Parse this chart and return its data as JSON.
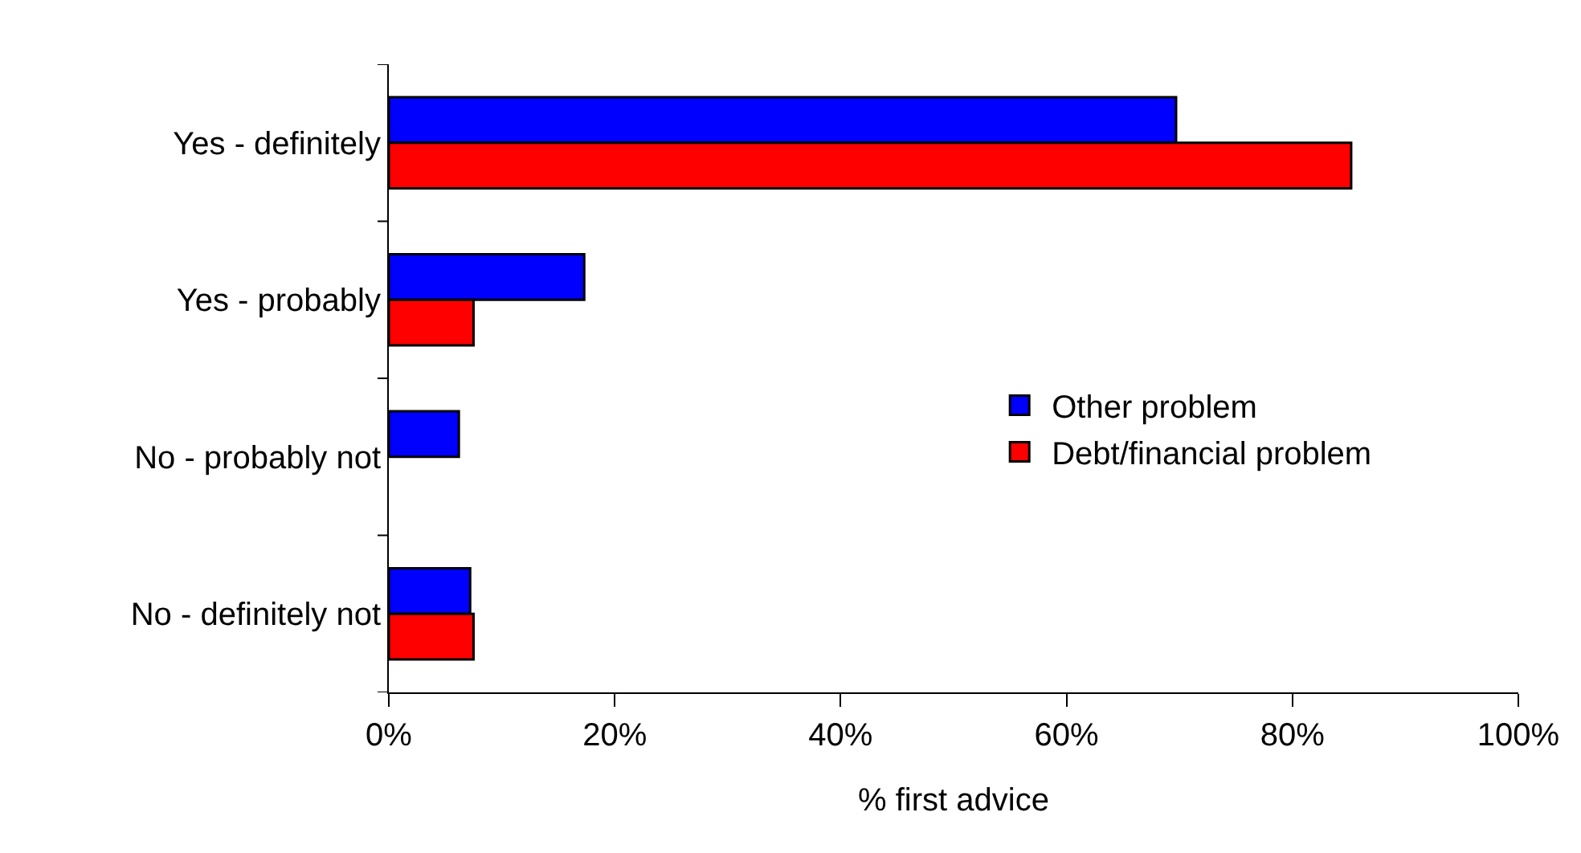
{
  "chart_data": {
    "type": "bar",
    "orientation": "horizontal",
    "xlabel": "% first advice",
    "categories": [
      "Yes - definitely",
      "Yes - probably",
      "No - probably not",
      "No - definitely not"
    ],
    "series": [
      {
        "name": "Other problem",
        "color": "#0000ff",
        "values": [
          69.7,
          17.3,
          6.2,
          7.2
        ]
      },
      {
        "name": "Debt/financial problem",
        "color": "#ff0000",
        "values": [
          85.2,
          7.5,
          null,
          7.5
        ]
      }
    ],
    "xlim": [
      0,
      100
    ],
    "xticks": [
      {
        "value": 0,
        "label": "0%"
      },
      {
        "value": 20,
        "label": "20%"
      },
      {
        "value": 40,
        "label": "40%"
      },
      {
        "value": 60,
        "label": "60%"
      },
      {
        "value": 80,
        "label": "80%"
      },
      {
        "value": 100,
        "label": "100%"
      }
    ],
    "grid": false,
    "legend": "right"
  }
}
